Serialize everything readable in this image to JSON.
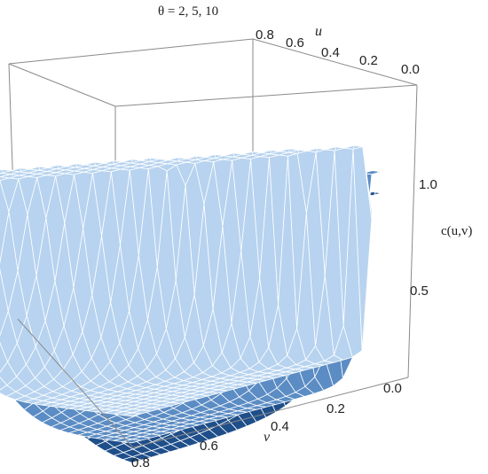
{
  "chart_data": {
    "type": "surface3d",
    "title": "θ = 2, 5, 10",
    "xlabel": "u",
    "ylabel": "v",
    "zlabel": "c(u,v)",
    "x_ticks": [
      "0.8",
      "0.6",
      "0.4",
      "0.2",
      "0.0"
    ],
    "y_ticks": [
      "0.8",
      "0.6",
      "0.4",
      "0.2",
      "0.0"
    ],
    "z_ticks": [
      "1.0",
      "0.5"
    ],
    "xlim": [
      0,
      0.8
    ],
    "ylim": [
      0,
      0.8
    ],
    "series": [
      {
        "theta": 2,
        "color": "#1f4f8a"
      },
      {
        "theta": 5,
        "color": "#5b8cc4"
      },
      {
        "theta": 10,
        "color": "#b7d3ef"
      }
    ]
  }
}
